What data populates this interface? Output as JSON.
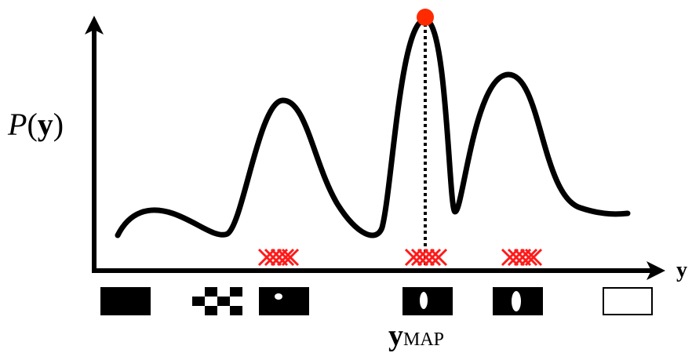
{
  "labels": {
    "y_axis": {
      "func": "P",
      "open": "(",
      "arg": "y",
      "close": ")"
    },
    "x_axis": "y",
    "map": {
      "base": "y",
      "sub": "MAP"
    }
  }
}
